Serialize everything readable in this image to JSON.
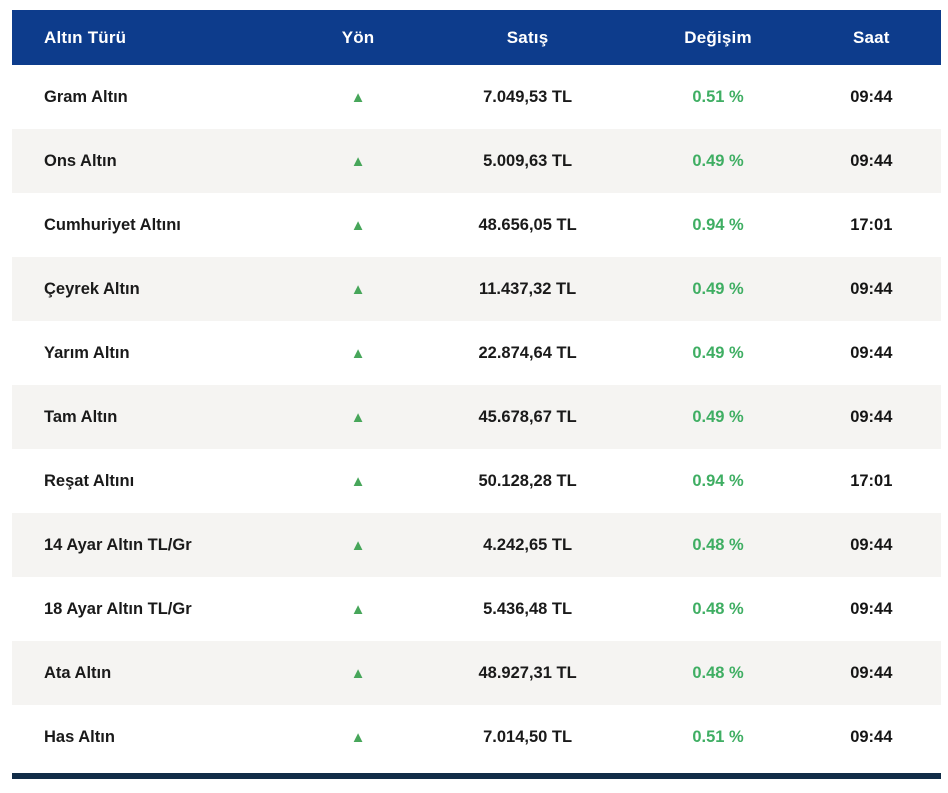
{
  "table": {
    "columns": [
      {
        "key": "type",
        "label": "Altın Türü"
      },
      {
        "key": "direction",
        "label": "Yön"
      },
      {
        "key": "price",
        "label": "Satış"
      },
      {
        "key": "change",
        "label": "Değişim"
      },
      {
        "key": "time",
        "label": "Saat"
      }
    ],
    "rows": [
      {
        "type": "Gram Altın",
        "direction": "up",
        "price": "7.049,53 TL",
        "change": "0.51 %",
        "time": "09:44"
      },
      {
        "type": "Ons Altın",
        "direction": "up",
        "price": "5.009,63 TL",
        "change": "0.49 %",
        "time": "09:44"
      },
      {
        "type": "Cumhuriyet Altını",
        "direction": "up",
        "price": "48.656,05 TL",
        "change": "0.94 %",
        "time": "17:01"
      },
      {
        "type": "Çeyrek Altın",
        "direction": "up",
        "price": "11.437,32 TL",
        "change": "0.49 %",
        "time": "09:44"
      },
      {
        "type": "Yarım Altın",
        "direction": "up",
        "price": "22.874,64 TL",
        "change": "0.49 %",
        "time": "09:44"
      },
      {
        "type": "Tam Altın",
        "direction": "up",
        "price": "45.678,67 TL",
        "change": "0.49 %",
        "time": "09:44"
      },
      {
        "type": "Reşat Altını",
        "direction": "up",
        "price": "50.128,28 TL",
        "change": "0.94 %",
        "time": "17:01"
      },
      {
        "type": "14 Ayar Altın TL/Gr",
        "direction": "up",
        "price": "4.242,65 TL",
        "change": "0.48 %",
        "time": "09:44"
      },
      {
        "type": "18 Ayar Altın TL/Gr",
        "direction": "up",
        "price": "5.436,48 TL",
        "change": "0.48 %",
        "time": "09:44"
      },
      {
        "type": "Ata Altın",
        "direction": "up",
        "price": "48.927,31 TL",
        "change": "0.48 %",
        "time": "09:44"
      },
      {
        "type": "Has Altın",
        "direction": "up",
        "price": "7.014,50 TL",
        "change": "0.51 %",
        "time": "09:44"
      }
    ]
  },
  "direction_symbols": {
    "up": "▲"
  },
  "colors": {
    "header_bg": "#0d3c8c",
    "header_text": "#ffffff",
    "row_alt_bg": "#f5f4f2",
    "up_green": "#47a65a",
    "change_green": "#3fae63",
    "text_dark": "#1a1a1a",
    "time_dark": "#151515",
    "bottom_bar": "#112c47"
  }
}
